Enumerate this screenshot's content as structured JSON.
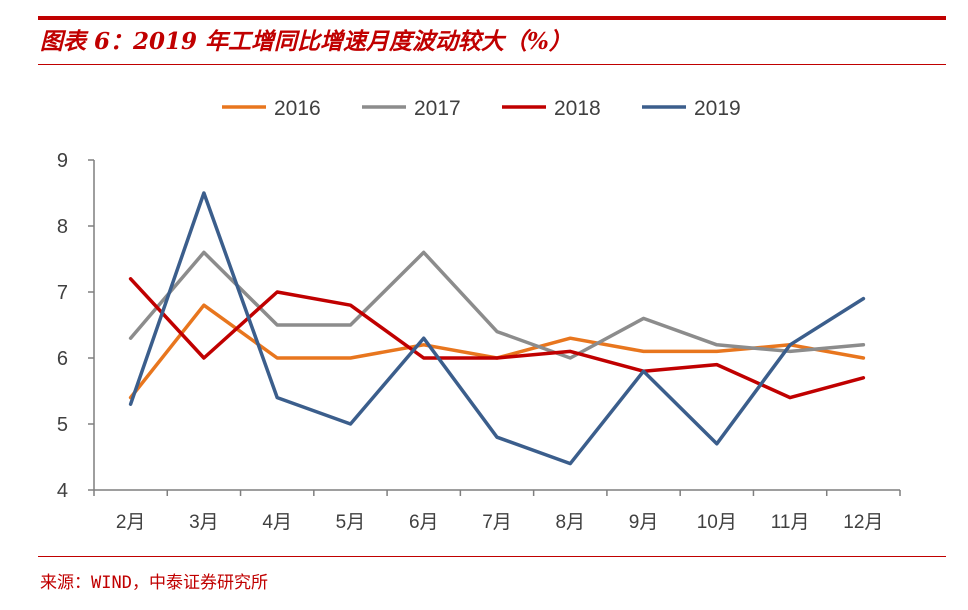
{
  "header": {
    "title": "图表 6：2019 年工增同比增速月度波动较大（%）"
  },
  "footer": {
    "source": "来源：WIND，中泰证券研究所"
  },
  "colors": {
    "accent": "#c00000",
    "axis": "#7f7f7f",
    "text": "#404040"
  },
  "chart_data": {
    "type": "line",
    "title": "",
    "xlabel": "",
    "ylabel": "",
    "categories": [
      "2月",
      "3月",
      "4月",
      "5月",
      "6月",
      "7月",
      "8月",
      "9月",
      "10月",
      "11月",
      "12月"
    ],
    "ylim": [
      4,
      9
    ],
    "yticks": [
      4,
      5,
      6,
      7,
      8,
      9
    ],
    "grid": false,
    "legend_position": "top-center",
    "series": [
      {
        "name": "2016",
        "color": "#e8761e",
        "values": [
          5.4,
          6.8,
          6.0,
          6.0,
          6.2,
          6.0,
          6.3,
          6.1,
          6.1,
          6.2,
          6.0
        ]
      },
      {
        "name": "2017",
        "color": "#8c8c8c",
        "values": [
          6.3,
          7.6,
          6.5,
          6.5,
          7.6,
          6.4,
          6.0,
          6.6,
          6.2,
          6.1,
          6.2
        ]
      },
      {
        "name": "2018",
        "color": "#c00000",
        "values": [
          7.2,
          6.0,
          7.0,
          6.8,
          6.0,
          6.0,
          6.1,
          5.8,
          5.9,
          5.4,
          5.7
        ]
      },
      {
        "name": "2019",
        "color": "#3b5e8c",
        "values": [
          5.3,
          8.5,
          5.4,
          5.0,
          6.3,
          4.8,
          4.4,
          5.8,
          4.7,
          6.2,
          6.9
        ]
      }
    ]
  }
}
